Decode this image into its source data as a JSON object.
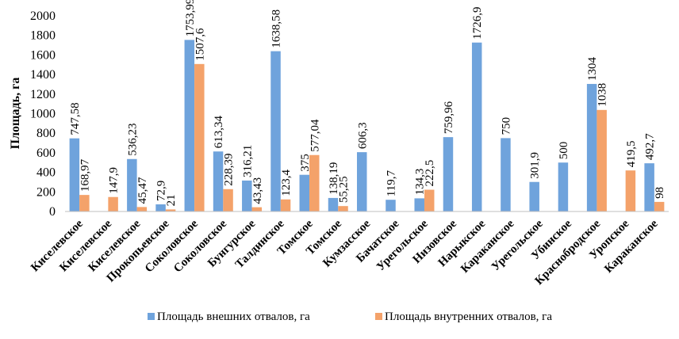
{
  "chart_data": {
    "type": "bar",
    "title": "",
    "xlabel": "",
    "ylabel": "Площадь, га",
    "ylim": [
      0,
      2000
    ],
    "yticks": [
      0,
      200,
      400,
      600,
      800,
      1000,
      1200,
      1400,
      1600,
      1800,
      2000
    ],
    "grid": false,
    "legend_position": "bottom",
    "categories": [
      "Киселевское",
      "Киселевское",
      "Киселевское",
      "Прокопьевское",
      "Соколовское",
      "Соколовское",
      "Бунгурское",
      "Талдинское",
      "Томское",
      "Томское",
      "Кумзасское",
      "Бачатское",
      "Урегольское",
      "Низовское",
      "Нарыкское",
      "Караканское",
      "Урегольское",
      "Убинское",
      "Краснобродское",
      "Уропское",
      "Караканское"
    ],
    "series": [
      {
        "name": "Площадь внешних отвалов, га",
        "color": "#6fa3dc",
        "values": [
          747.58,
          null,
          536.23,
          72.9,
          1753.99,
          613.34,
          316.21,
          1638.58,
          375,
          138.19,
          606.3,
          119.7,
          134.3,
          759.96,
          1726.9,
          750,
          301.9,
          500,
          1304,
          null,
          492.7
        ],
        "labels": [
          "747,58",
          "",
          "536,23",
          "72,9",
          "1753,99",
          "613,34",
          "316,21",
          "1638,58",
          "375",
          "138,19",
          "606,3",
          "119,7",
          "134,3",
          "759,96",
          "1726,9",
          "750",
          "301,9",
          "500",
          "1304",
          "",
          "492,7"
        ]
      },
      {
        "name": "Площадь внутренних отвалов, га",
        "color": "#f4a26a",
        "values": [
          168.97,
          147.9,
          45.47,
          21,
          1507.6,
          228.39,
          43.43,
          123.4,
          577.04,
          55.25,
          null,
          null,
          222.5,
          null,
          null,
          null,
          null,
          null,
          1038,
          419.5,
          98
        ],
        "labels": [
          "168,97",
          "147,9",
          "45,47",
          "21",
          "1507,6",
          "228,39",
          "43,43",
          "123,4",
          "577,04",
          "55,25",
          "",
          "",
          "222,5",
          "",
          "",
          "",
          "",
          "",
          "1038",
          "419,5",
          "98"
        ]
      }
    ]
  }
}
